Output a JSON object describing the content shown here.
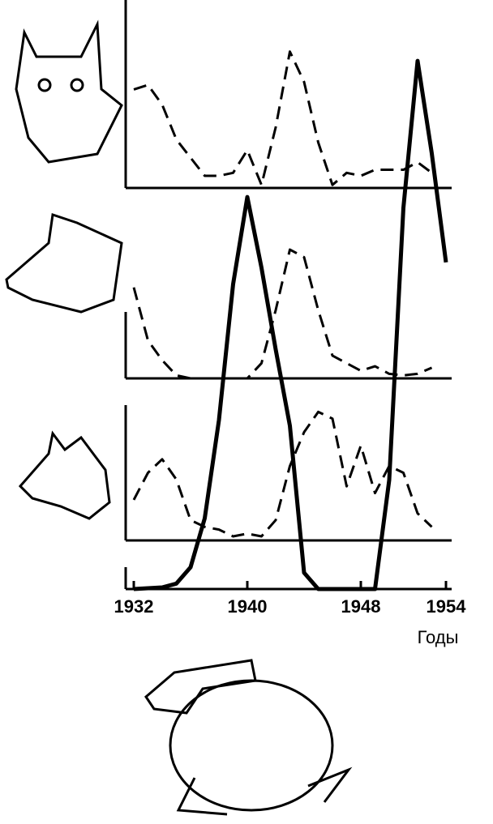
{
  "chart_data": [
    {
      "type": "line",
      "style": "dashed",
      "color": "#000000",
      "xlim": [
        1932,
        1955
      ],
      "ylim": [
        0,
        100
      ],
      "x": [
        1932,
        1933,
        1934,
        1935,
        1936,
        1937,
        1938,
        1939,
        1940,
        1941,
        1942,
        1943,
        1944,
        1945,
        1946,
        1947,
        1948,
        1949,
        1950,
        1951,
        1952,
        1953
      ],
      "values": [
        65,
        68,
        55,
        32,
        20,
        8,
        8,
        10,
        25,
        2,
        40,
        90,
        70,
        30,
        2,
        10,
        8,
        12,
        12,
        12,
        17,
        10
      ]
    },
    {
      "type": "line",
      "style": "dashed",
      "color": "#000000",
      "xlim": [
        1932,
        1955
      ],
      "ylim": [
        0,
        100
      ],
      "x": [
        1932,
        1933,
        1934,
        1935,
        1936,
        1937,
        1938,
        1939,
        1940,
        1941,
        1942,
        1943,
        1944,
        1945,
        1946,
        1947,
        1948,
        1949,
        1950,
        1951,
        1952,
        1953
      ],
      "values": [
        60,
        25,
        12,
        2,
        0,
        0,
        0,
        0,
        0,
        10,
        45,
        85,
        80,
        45,
        15,
        10,
        5,
        8,
        3,
        2,
        3,
        7
      ]
    },
    {
      "type": "line",
      "style": "dashed",
      "color": "#000000",
      "xlim": [
        1932,
        1955
      ],
      "ylim": [
        0,
        100
      ],
      "x": [
        1932,
        1933,
        1934,
        1935,
        1936,
        1937,
        1938,
        1939,
        1940,
        1941,
        1942,
        1943,
        1944,
        1945,
        1946,
        1947,
        1948,
        1949,
        1950,
        1951,
        1952,
        1953
      ],
      "values": [
        30,
        50,
        60,
        45,
        15,
        10,
        8,
        3,
        5,
        3,
        15,
        55,
        80,
        95,
        90,
        40,
        70,
        35,
        55,
        50,
        20,
        10
      ]
    },
    {
      "type": "line",
      "style": "solid",
      "color": "#000000",
      "xlim": [
        1932,
        1955
      ],
      "ylim": [
        0,
        100
      ],
      "x": [
        1932,
        1934,
        1935,
        1936,
        1937,
        1938,
        1939,
        1940,
        1941,
        1942,
        1943,
        1944,
        1945,
        1946,
        1947,
        1948,
        1949,
        1950,
        1951,
        1952,
        1953,
        1954
      ],
      "values": [
        0,
        0.3,
        1,
        4,
        13,
        31,
        56,
        72,
        59,
        44,
        30,
        3,
        0,
        0,
        0,
        0,
        0,
        20,
        70,
        97,
        80,
        60
      ],
      "xticks": [
        1932,
        1940,
        1948,
        1954
      ],
      "xlabel": "Годы"
    }
  ]
}
